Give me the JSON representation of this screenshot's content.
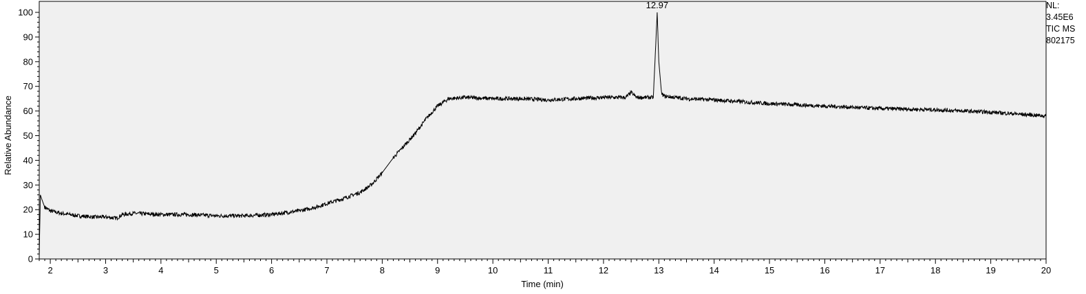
{
  "side_info": {
    "nl_label": "NL:",
    "nl_value": "3.45E6",
    "trace_label": "TIC  MS",
    "file_label": "802175"
  },
  "chart_data": {
    "type": "line",
    "title": "",
    "xlabel": "Time (min)",
    "ylabel": "Relative Abundance",
    "xlim": [
      1.8,
      20
    ],
    "ylim": [
      0,
      100
    ],
    "x_ticks": [
      2,
      3,
      4,
      5,
      6,
      7,
      8,
      9,
      10,
      11,
      12,
      13,
      14,
      15,
      16,
      17,
      18,
      19,
      20
    ],
    "y_ticks": [
      0,
      10,
      20,
      30,
      40,
      50,
      60,
      70,
      80,
      90,
      100
    ],
    "grid": false,
    "background_color": "#f0f0f0",
    "line_color": "#000000",
    "series": [
      {
        "x": [
          1.8,
          1.82,
          1.85,
          1.9,
          2.0,
          2.2,
          2.5,
          2.8,
          3.0,
          3.2,
          3.3,
          3.5,
          4.0,
          4.5,
          5.0,
          5.5,
          6.0,
          6.5,
          6.8,
          7.0,
          7.3,
          7.6,
          7.8,
          8.0,
          8.2,
          8.4,
          8.6,
          8.8,
          9.0,
          9.2,
          9.5,
          10.0,
          10.5,
          11.0,
          11.5,
          12.0,
          12.4,
          12.5,
          12.6,
          12.9,
          12.93,
          12.97,
          13.0,
          13.05,
          13.1,
          13.5,
          14.0,
          15.0,
          16.0,
          17.0,
          18.0,
          19.0,
          20.0
        ],
        "y": [
          1,
          26,
          24,
          21,
          19.5,
          18.5,
          17.5,
          17,
          17,
          16.5,
          18,
          18.5,
          18,
          18,
          17.5,
          17.5,
          18,
          19.5,
          21,
          22.5,
          24.5,
          27,
          30,
          35,
          41,
          46,
          51,
          57,
          62,
          65,
          65.5,
          65,
          65,
          64.5,
          65,
          65.5,
          65.5,
          67.5,
          65.5,
          65.5,
          80,
          100,
          80,
          67,
          66,
          65,
          64.5,
          63,
          62,
          61,
          60.5,
          59.5,
          58
        ]
      }
    ],
    "annotations": [
      {
        "label": "12.97",
        "x": 12.97,
        "y": 100
      }
    ]
  }
}
